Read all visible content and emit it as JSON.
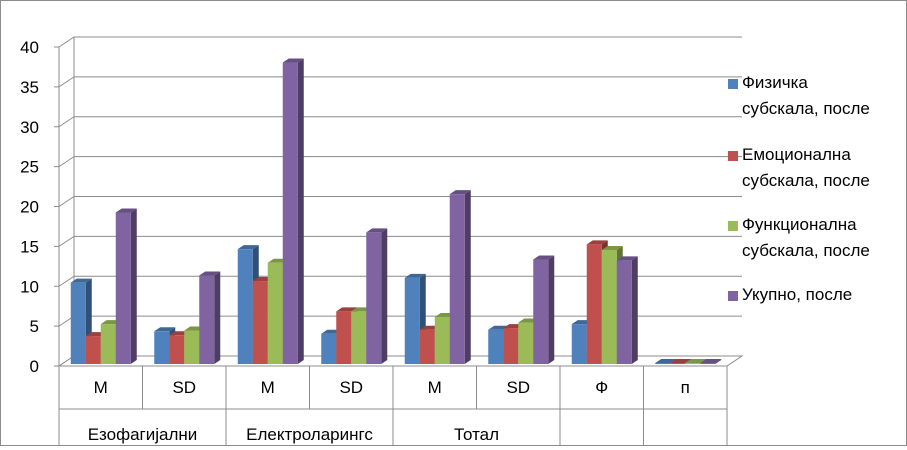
{
  "chart_data": {
    "type": "bar",
    "style": "3d-clustered-column",
    "ylim": [
      0,
      40
    ],
    "yticks": [
      0,
      5,
      10,
      15,
      20,
      25,
      30,
      35,
      40
    ],
    "gridlines": true,
    "legend_position": "right",
    "categories": [
      "M",
      "SD",
      "M",
      "SD",
      "M",
      "SD",
      "Ф",
      "п"
    ],
    "groups": [
      {
        "label": "Езофагијални",
        "span": 2
      },
      {
        "label": "Електроларингс",
        "span": 2
      },
      {
        "label": "Тотал",
        "span": 2
      },
      {
        "label": "",
        "span": 1
      },
      {
        "label": "",
        "span": 1
      }
    ],
    "series": [
      {
        "name": "Физичка субскала, после",
        "color": "#4F81BD",
        "values": [
          10.2,
          4.1,
          14.4,
          3.8,
          10.8,
          4.3,
          5.0,
          0.05
        ]
      },
      {
        "name": "Емоционална субскала, после",
        "color": "#C0504D",
        "values": [
          3.5,
          3.6,
          10.4,
          6.6,
          4.3,
          4.5,
          15.0,
          0.05
        ]
      },
      {
        "name": "Функционална субскала, после",
        "color": "#9BBB59",
        "values": [
          5.0,
          4.2,
          12.7,
          6.6,
          5.9,
          5.2,
          14.3,
          0.05
        ]
      },
      {
        "name": "Укупно, после",
        "color": "#8064A2",
        "values": [
          19.0,
          11.1,
          37.8,
          16.5,
          21.3,
          13.1,
          13.0,
          0.05
        ]
      }
    ]
  }
}
